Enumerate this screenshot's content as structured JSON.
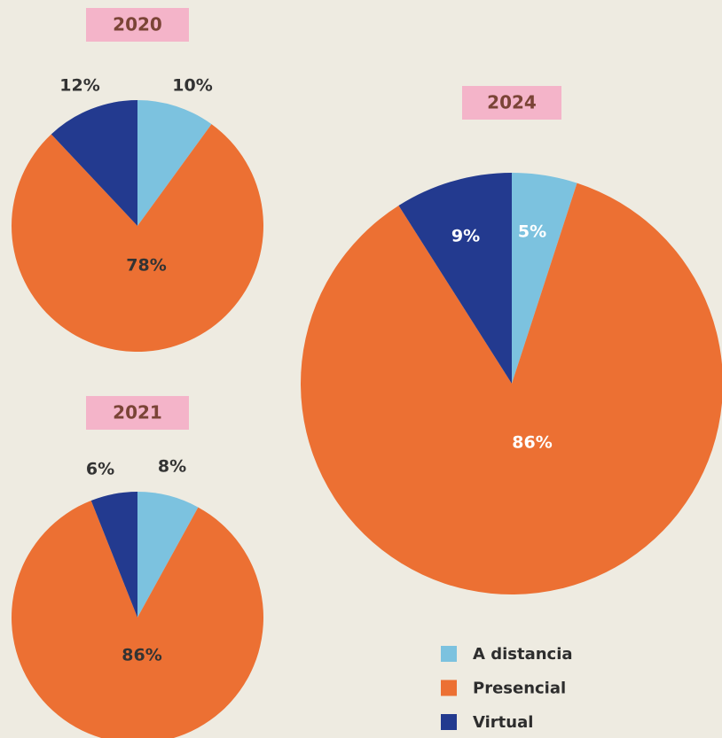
{
  "chart_data": [
    {
      "type": "pie",
      "title": "2020",
      "values": [
        10,
        78,
        12
      ],
      "value_labels": [
        "10%",
        "78%",
        "12%"
      ]
    },
    {
      "type": "pie",
      "title": "2021",
      "values": [
        8,
        86,
        6
      ],
      "value_labels": [
        "8%",
        "86%",
        "6%"
      ]
    },
    {
      "type": "pie",
      "title": "2024",
      "values": [
        5,
        86,
        9
      ],
      "value_labels": [
        "5%",
        "86%",
        "9%"
      ]
    }
  ],
  "legend": {
    "labels": [
      "A distancia",
      "Presencial",
      "Virtual"
    ],
    "colors": [
      "#7cc2df",
      "#ec7033",
      "#233a8f"
    ]
  }
}
